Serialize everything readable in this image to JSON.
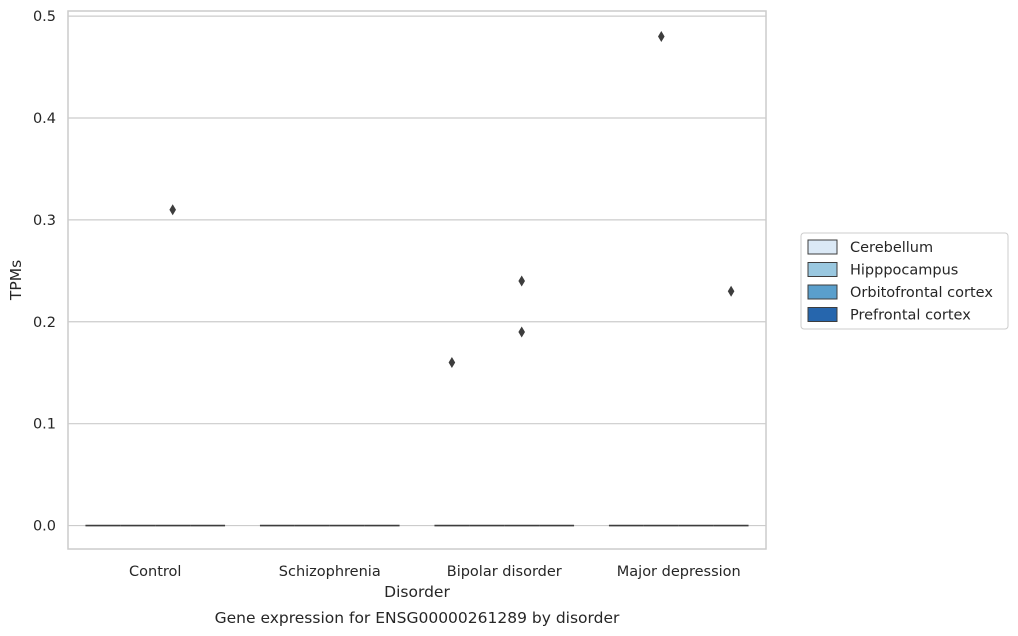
{
  "chart_data": {
    "type": "box",
    "title": "",
    "caption": "Gene expression for ENSG00000261289 by disorder",
    "xlabel": "Disorder",
    "ylabel": "TPMs",
    "categories": [
      "Control",
      "Schizophrenia",
      "Bipolar disorder",
      "Major depression"
    ],
    "ylim": [
      -0.023,
      0.505
    ],
    "yticks": [
      0.0,
      0.1,
      0.2,
      0.3,
      0.4,
      0.5
    ],
    "ytick_labels": [
      "0.0",
      "0.1",
      "0.2",
      "0.3",
      "0.4",
      "0.5"
    ],
    "grid": true,
    "legend_position": "right",
    "series": [
      {
        "name": "Cerebellum",
        "color": "#dbe9f6",
        "median": [
          0.0,
          0.0,
          0.0,
          0.0
        ],
        "outliers": [
          [],
          [],
          [
            0.16
          ],
          []
        ]
      },
      {
        "name": "Hipppocampus",
        "color": "#9ac8e0",
        "median": [
          0.0,
          0.0,
          0.0,
          0.0
        ],
        "outliers": [
          [],
          [],
          [],
          [
            0.48
          ]
        ]
      },
      {
        "name": "Orbitofrontal cortex",
        "color": "#5a9fcc",
        "median": [
          0.0,
          0.0,
          0.0,
          0.0
        ],
        "outliers": [
          [
            0.31
          ],
          [],
          [
            0.24,
            0.19
          ],
          []
        ]
      },
      {
        "name": "Prefrontal cortex",
        "color": "#2666ad",
        "median": [
          0.0,
          0.0,
          0.0,
          0.0
        ],
        "outliers": [
          [],
          [],
          [],
          [
            0.23
          ]
        ]
      }
    ]
  }
}
